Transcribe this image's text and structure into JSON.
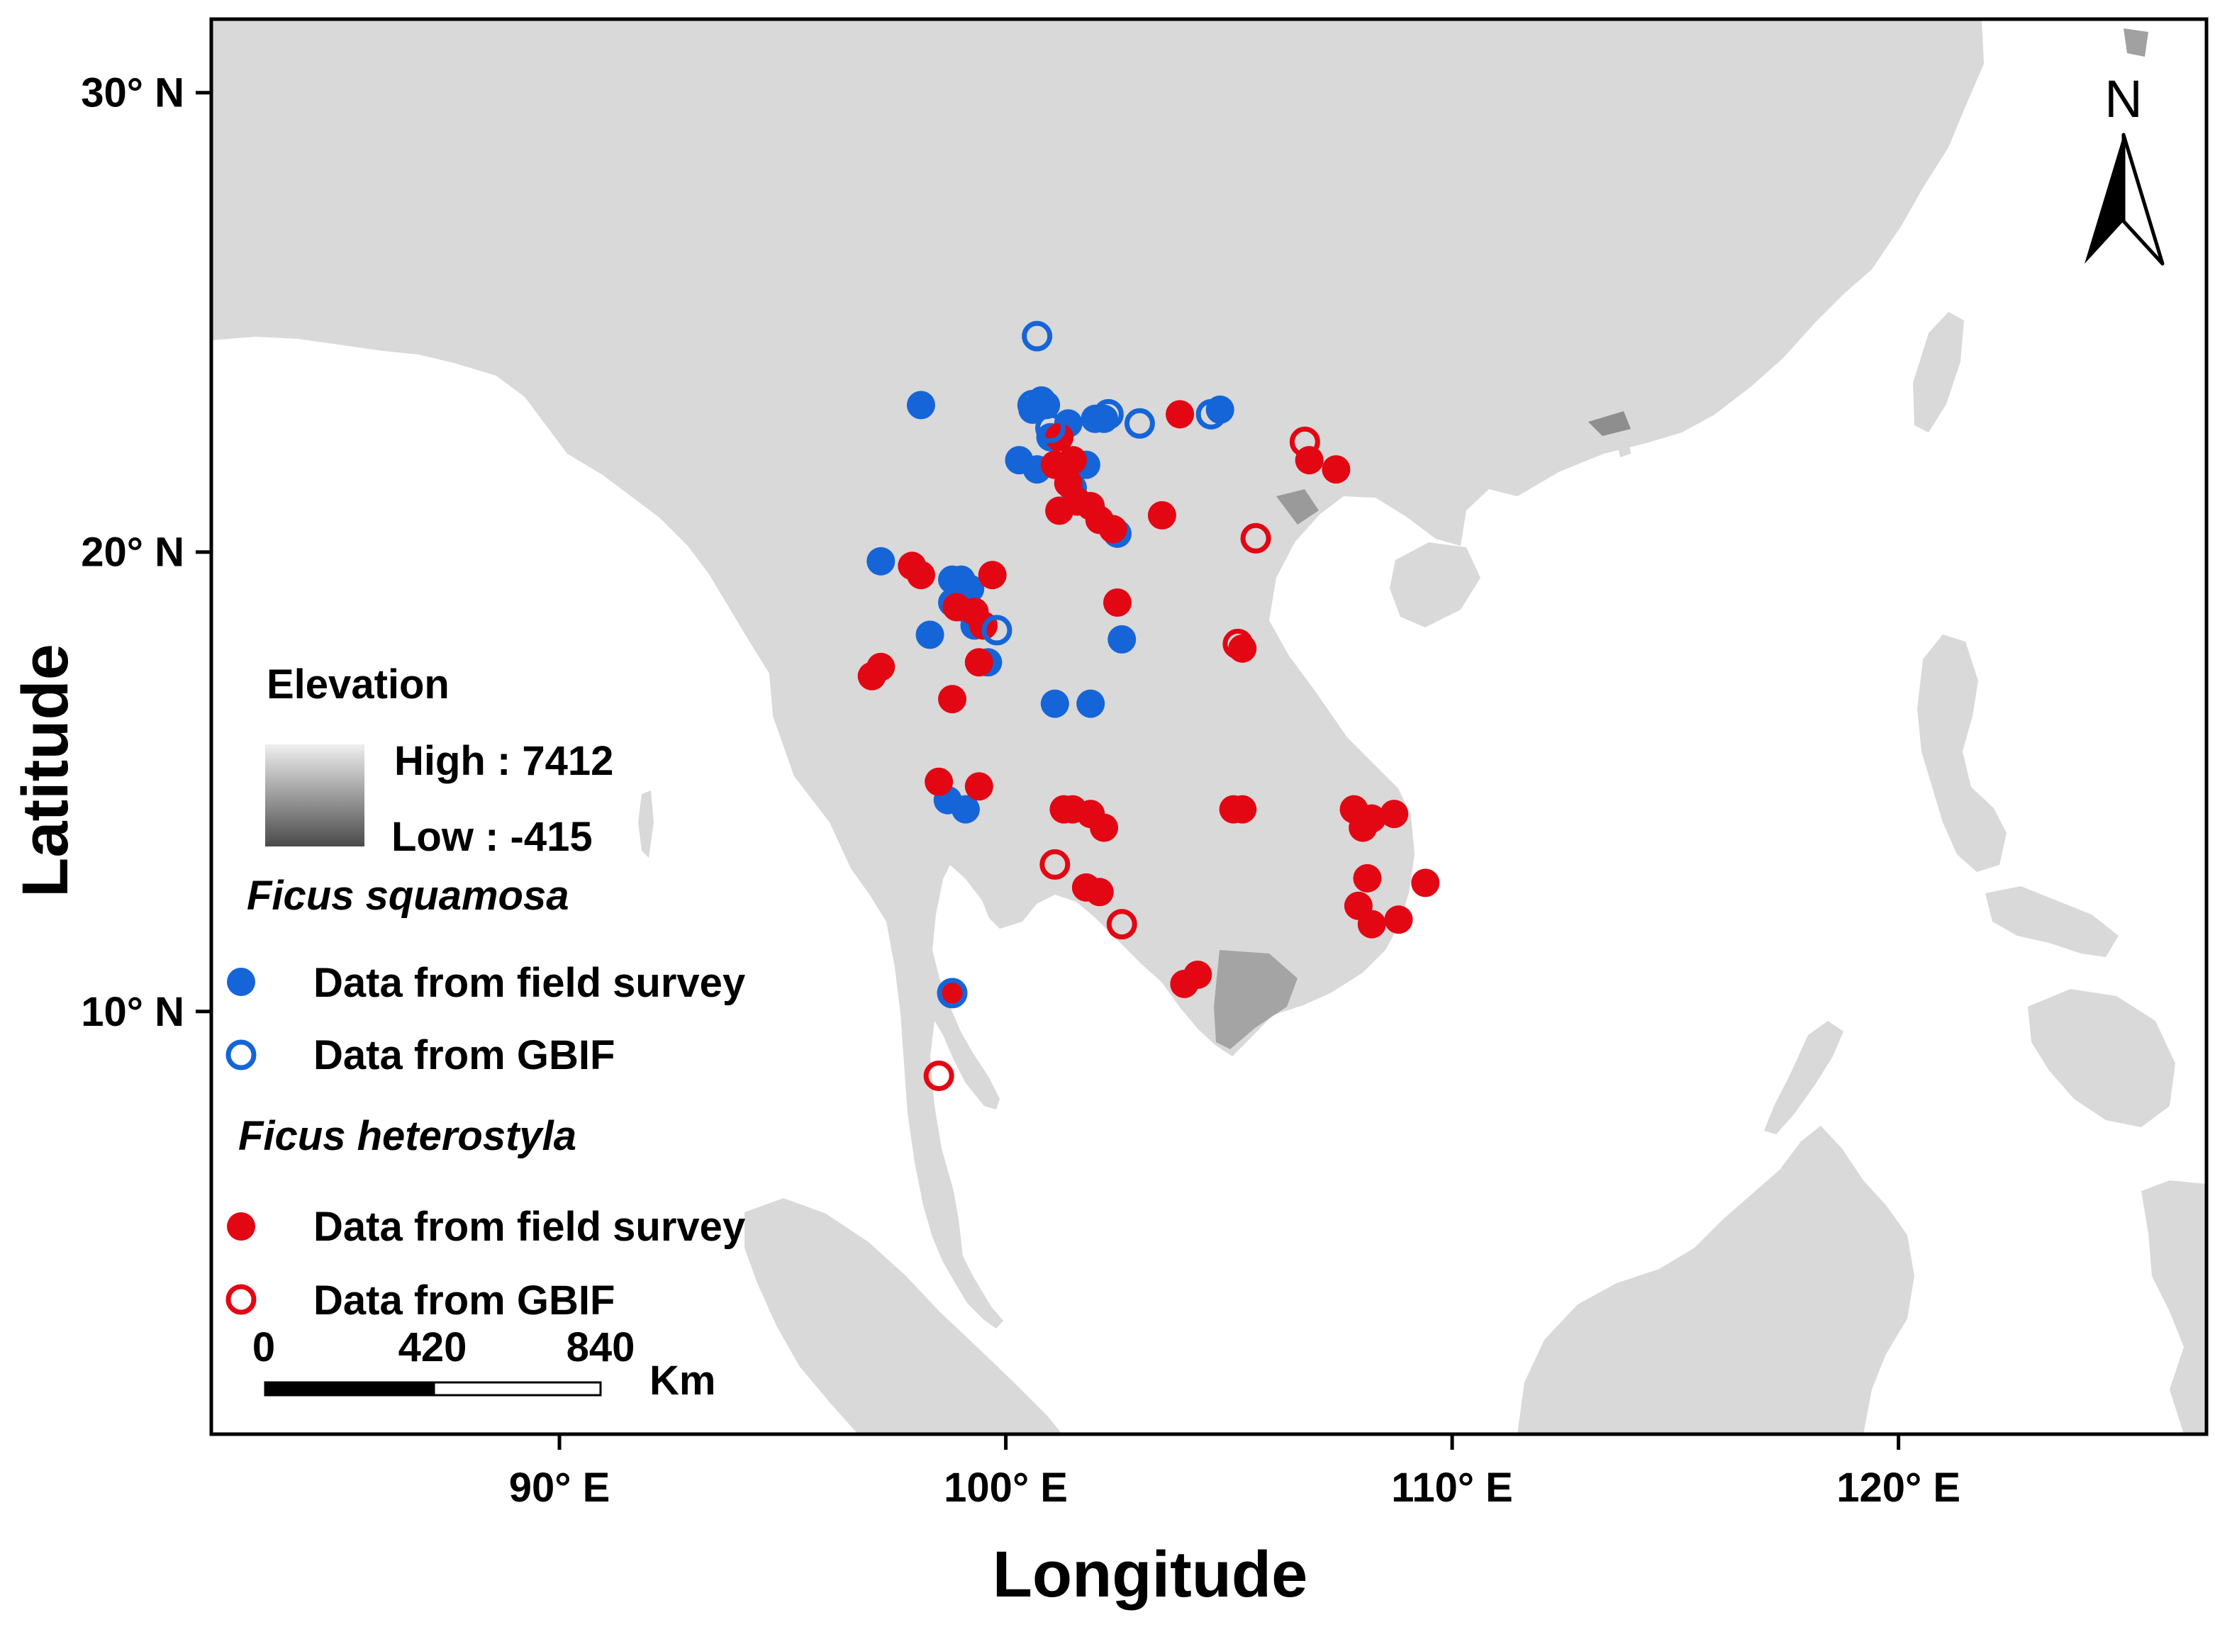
{
  "axes": {
    "x_title": "Longitude",
    "y_title": "Latitude",
    "lon_range": [
      82.2,
      126.9
    ],
    "lat_range": [
      0.8,
      31.6
    ],
    "x_ticks": [
      {
        "value": 90,
        "label": "90° E"
      },
      {
        "value": 100,
        "label": "100° E"
      },
      {
        "value": 110,
        "label": "110° E"
      },
      {
        "value": 120,
        "label": "120° E"
      }
    ],
    "y_ticks": [
      {
        "value": 30,
        "label": "30° N"
      },
      {
        "value": 20,
        "label": "20° N"
      },
      {
        "value": 10,
        "label": "10° N"
      }
    ]
  },
  "north_arrow": {
    "label": "N"
  },
  "legend": {
    "elevation_title": "Elevation",
    "high_label": "High : 7412",
    "low_label": "Low : -415",
    "species1": "Ficus squamosa",
    "species2": "Ficus heterostyla",
    "field_label": "Data from field survey",
    "gbif_label": "Data from GBIF"
  },
  "scale_bar": {
    "ticks": [
      "0",
      "420",
      "840"
    ],
    "unit": "Km"
  },
  "colors": {
    "land": "#d9d9d9",
    "sea": "#ffffff",
    "squamosa": "#1565d8",
    "heterostyla": "#e30613",
    "elevation_high": "#efefef",
    "elevation_low": "#4a4a4a"
  },
  "occurrences": {
    "squamosa_field": [
      [
        101.0,
        22.5
      ],
      [
        100.9,
        23.2
      ],
      [
        100.6,
        23.1
      ],
      [
        101.4,
        22.8
      ],
      [
        100.3,
        22.0
      ],
      [
        101.8,
        21.9
      ],
      [
        101.5,
        21.4
      ],
      [
        100.7,
        21.8
      ],
      [
        102.0,
        22.9
      ],
      [
        102.2,
        22.9
      ],
      [
        98.1,
        23.2
      ],
      [
        104.8,
        23.1
      ],
      [
        100.8,
        23.3
      ],
      [
        102.5,
        20.4
      ],
      [
        97.2,
        19.8
      ],
      [
        98.8,
        19.4
      ],
      [
        99.0,
        19.4
      ],
      [
        99.2,
        19.2
      ],
      [
        99.0,
        18.8
      ],
      [
        99.3,
        18.4
      ],
      [
        98.8,
        18.9
      ],
      [
        98.3,
        18.2
      ],
      [
        99.6,
        17.6
      ],
      [
        101.1,
        16.7
      ],
      [
        101.9,
        16.7
      ],
      [
        102.6,
        18.1
      ],
      [
        98.7,
        14.6
      ],
      [
        99.1,
        14.4
      ],
      [
        98.8,
        10.4
      ]
    ],
    "squamosa_gbif": [
      [
        100.7,
        24.7
      ],
      [
        101.0,
        22.7
      ],
      [
        102.3,
        23.0
      ],
      [
        103.0,
        22.8
      ],
      [
        104.6,
        23.0
      ],
      [
        100.6,
        23.2
      ],
      [
        99.8,
        18.3
      ],
      [
        98.8,
        10.4
      ]
    ],
    "heterostyla_field": [
      [
        101.2,
        22.5
      ],
      [
        101.5,
        22.0
      ],
      [
        101.1,
        21.9
      ],
      [
        101.4,
        21.5
      ],
      [
        101.9,
        21.0
      ],
      [
        101.2,
        20.9
      ],
      [
        101.6,
        21.1
      ],
      [
        102.1,
        20.7
      ],
      [
        102.4,
        20.5
      ],
      [
        103.5,
        20.8
      ],
      [
        103.9,
        23.0
      ],
      [
        106.8,
        22.0
      ],
      [
        107.4,
        21.8
      ],
      [
        97.9,
        19.7
      ],
      [
        98.1,
        19.5
      ],
      [
        98.9,
        18.8
      ],
      [
        99.3,
        18.7
      ],
      [
        99.5,
        18.4
      ],
      [
        99.7,
        19.5
      ],
      [
        97.0,
        17.3
      ],
      [
        97.2,
        17.5
      ],
      [
        99.4,
        17.6
      ],
      [
        98.8,
        16.8
      ],
      [
        102.5,
        18.9
      ],
      [
        98.5,
        15.0
      ],
      [
        99.4,
        14.9
      ],
      [
        101.3,
        14.4
      ],
      [
        101.5,
        14.4
      ],
      [
        101.9,
        14.3
      ],
      [
        102.2,
        14.0
      ],
      [
        105.1,
        14.4
      ],
      [
        105.3,
        14.4
      ],
      [
        107.8,
        14.4
      ],
      [
        108.2,
        14.2
      ],
      [
        108.0,
        14.0
      ],
      [
        108.7,
        14.3
      ],
      [
        101.8,
        12.7
      ],
      [
        102.1,
        12.6
      ],
      [
        108.1,
        12.9
      ],
      [
        109.4,
        12.8
      ],
      [
        107.9,
        12.3
      ],
      [
        108.2,
        11.9
      ],
      [
        108.8,
        12.0
      ],
      [
        104.0,
        10.6
      ],
      [
        104.3,
        10.8
      ],
      [
        98.8,
        10.4
      ],
      [
        105.3,
        17.9
      ]
    ],
    "heterostyla_gbif": [
      [
        106.7,
        22.4
      ],
      [
        105.6,
        20.3
      ],
      [
        105.2,
        18.0
      ],
      [
        101.1,
        13.2
      ],
      [
        102.6,
        11.9
      ],
      [
        98.5,
        8.6
      ]
    ]
  }
}
